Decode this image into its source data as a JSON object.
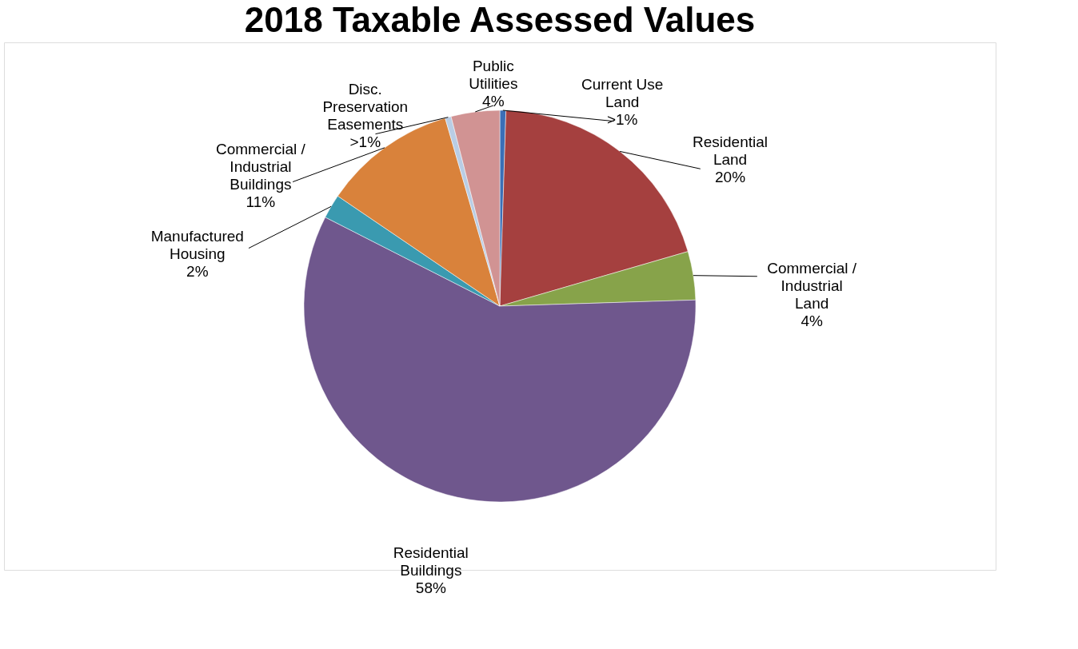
{
  "chart_data": {
    "type": "pie",
    "title": "2018 Taxable Assessed Values",
    "categories": [
      "Current Use Land",
      "Residential Land",
      "Commercial / Industrial Land",
      "Residential Buildings",
      "Manufactured Housing",
      "Commercial / Industrial Buildings",
      "Disc. Preservation Easements",
      "Public Utilities"
    ],
    "values": [
      0.5,
      20,
      4,
      58,
      2,
      11,
      0.5,
      4
    ],
    "value_labels": [
      ">1%",
      "20%",
      "4%",
      "58%",
      "2%",
      "11%",
      ">1%",
      "4%"
    ],
    "colors": [
      "#3b6fb6",
      "#a5403f",
      "#87a34a",
      "#6f578d",
      "#3a9ab0",
      "#d9823b",
      "#b9cde5",
      "#d19393"
    ],
    "legend": false
  }
}
